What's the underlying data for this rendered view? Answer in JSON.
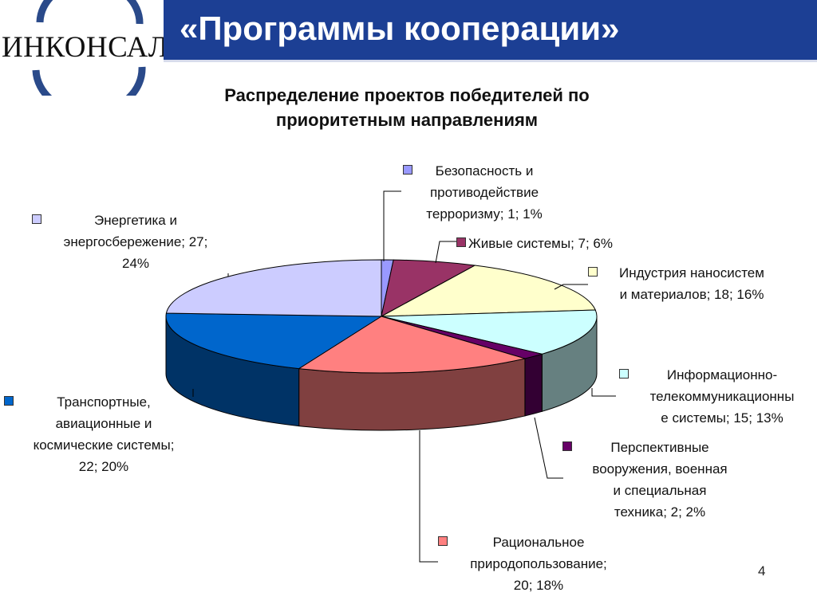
{
  "header": {
    "logo_text": "ИНКОНСАЛТ К",
    "title": "«Программы кооперации»"
  },
  "chart_data": {
    "type": "pie",
    "title_lines": [
      "Распределение проектов победителей по",
      "приоритетным направлениям"
    ],
    "slices": [
      {
        "name": "Безопасность и противодействие терроризму",
        "value": 1,
        "percent": 1,
        "color": "#9999ff",
        "label_lines": [
          "Безопасность и",
          "противодействие",
          "терроризму; 1; 1%"
        ]
      },
      {
        "name": "Живые системы",
        "value": 7,
        "percent": 6,
        "color": "#993366",
        "label_lines": [
          "Живые системы; 7; 6%"
        ]
      },
      {
        "name": "Индустрия наносистем и материалов",
        "value": 18,
        "percent": 16,
        "color": "#ffffcc",
        "label_lines": [
          "Индустрия наносистем",
          "и материалов; 18; 16%"
        ]
      },
      {
        "name": "Информационно-телекоммуникационные системы",
        "value": 15,
        "percent": 13,
        "color": "#ccffff",
        "label_lines": [
          "Информационно-",
          "телекоммуникационны",
          "е системы; 15; 13%"
        ]
      },
      {
        "name": "Перспективные вооружения, военная и специальная техника",
        "value": 2,
        "percent": 2,
        "color": "#660066",
        "label_lines": [
          "Перспективные",
          "вооружения, военная",
          "и специальная",
          "техника; 2; 2%"
        ]
      },
      {
        "name": "Рациональное природопользование",
        "value": 20,
        "percent": 18,
        "color": "#ff8080",
        "label_lines": [
          "Рациональное",
          "природопользование;",
          "20; 18%"
        ]
      },
      {
        "name": "Транспортные, авиационные и космические системы",
        "value": 22,
        "percent": 20,
        "color": "#0066cc",
        "label_lines": [
          "Транспортные,",
          "авиационные и",
          "космические системы;",
          "22; 20%"
        ]
      },
      {
        "name": "Энергетика и энергосбережение",
        "value": 27,
        "percent": 24,
        "color": "#ccccff",
        "label_lines": [
          "Энергетика и",
          "энергосбережение; 27;",
          "24%"
        ]
      }
    ]
  },
  "footer": {
    "page_number": "4"
  }
}
